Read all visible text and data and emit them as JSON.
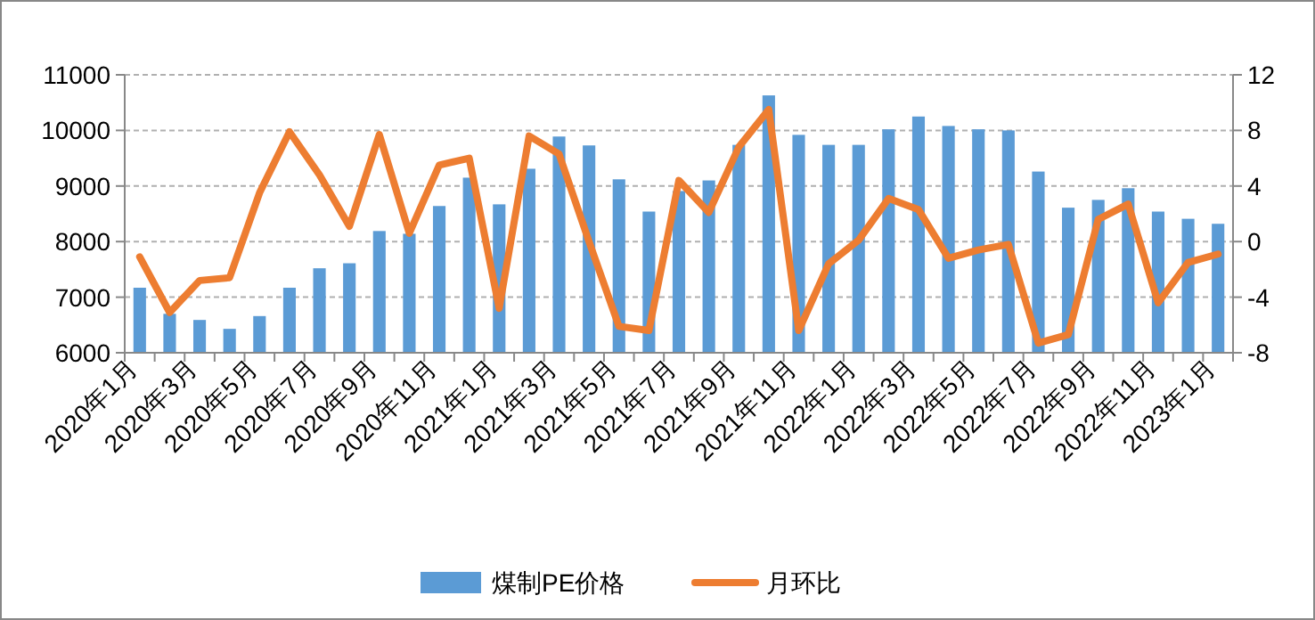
{
  "chart_data": {
    "type": "bar",
    "categories": [
      "2020年1月",
      null,
      "2020年3月",
      null,
      "2020年5月",
      null,
      "2020年7月",
      null,
      "2020年9月",
      null,
      "2020年11月",
      null,
      "2021年1月",
      null,
      "2021年3月",
      null,
      "2021年5月",
      null,
      "2021年7月",
      null,
      "2021年9月",
      null,
      "2021年11月",
      null,
      "2022年1月",
      null,
      "2022年3月",
      null,
      "2022年5月",
      null,
      "2022年7月",
      null,
      "2022年9月",
      null,
      "2022年11月",
      null,
      "2023年1月"
    ],
    "series": [
      {
        "name": "煤制PE价格",
        "color": "#5b9bd5",
        "values": [
          7170,
          6700,
          6590,
          6430,
          6660,
          7170,
          7520,
          7610,
          8190,
          8140,
          8640,
          9150,
          8670,
          9310,
          9890,
          9730,
          9120,
          8540,
          8910,
          9100,
          9740,
          10630,
          9920,
          9740,
          9740,
          10020,
          10250,
          10080,
          10020,
          10000,
          9260,
          8610,
          8750,
          8960,
          8540,
          8410,
          8320
        ]
      },
      {
        "name": "月环比",
        "type": "line",
        "axis": "y2",
        "color": "#ed7d31",
        "values": [
          -1.1,
          -5.1,
          -2.8,
          -2.6,
          3.5,
          7.9,
          4.8,
          1.1,
          7.7,
          0.6,
          5.5,
          6.0,
          -4.8,
          7.6,
          6.3,
          0.0,
          -6.1,
          -6.4,
          4.4,
          2.1,
          6.8,
          9.5,
          -6.4,
          -1.6,
          0.1,
          3.1,
          2.3,
          -1.2,
          -0.6,
          -0.2,
          -7.3,
          -6.7,
          1.6,
          2.7,
          -4.4,
          -1.5,
          -0.9
        ]
      }
    ],
    "ylim": [
      6000,
      11000
    ],
    "yticks": [
      6000,
      7000,
      8000,
      9000,
      10000,
      11000
    ],
    "y2lim": [
      -8,
      12
    ],
    "y2ticks": [
      -8,
      -4,
      0,
      4,
      8,
      12
    ],
    "grid": "y",
    "legend": "bottom",
    "marker": "none",
    "line_style": "solid"
  }
}
